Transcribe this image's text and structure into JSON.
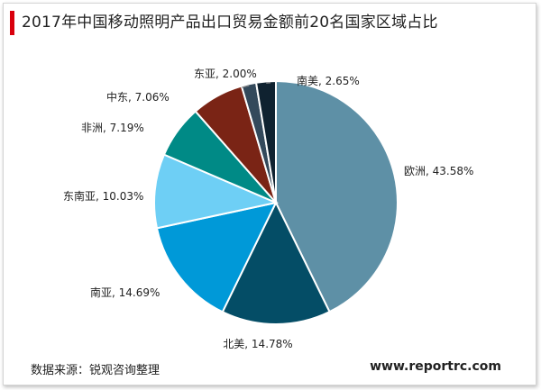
{
  "chart_data": {
    "type": "pie",
    "title": "2017年中国移动照明产品出口贸易金额前20名国家区域占比",
    "slices": [
      {
        "label": "欧洲",
        "value": 43.58,
        "text": "欧洲, 43.58%",
        "color": "#5e90a6"
      },
      {
        "label": "北美",
        "value": 14.78,
        "text": "北美, 14.78%",
        "color": "#044d66"
      },
      {
        "label": "南亚",
        "value": 14.69,
        "text": "南亚, 14.69%",
        "color": "#0099d8"
      },
      {
        "label": "东南亚",
        "value": 10.03,
        "text": "东南亚, 10.03%",
        "color": "#6ecff5"
      },
      {
        "label": "非洲",
        "value": 7.19,
        "text": "非洲, 7.19%",
        "color": "#008a86"
      },
      {
        "label": "中东",
        "value": 7.06,
        "text": "中东, 7.06%",
        "color": "#7a2415"
      },
      {
        "label": "东亚",
        "value": 2.0,
        "text": "东亚, 2.00%",
        "color": "#33495b"
      },
      {
        "label": "南美",
        "value": 2.65,
        "text": "南美, 2.65%",
        "color": "#0f2230"
      }
    ]
  },
  "footer": {
    "source": "数据来源：锐观咨询整理",
    "website": "www.reportrc.com"
  }
}
